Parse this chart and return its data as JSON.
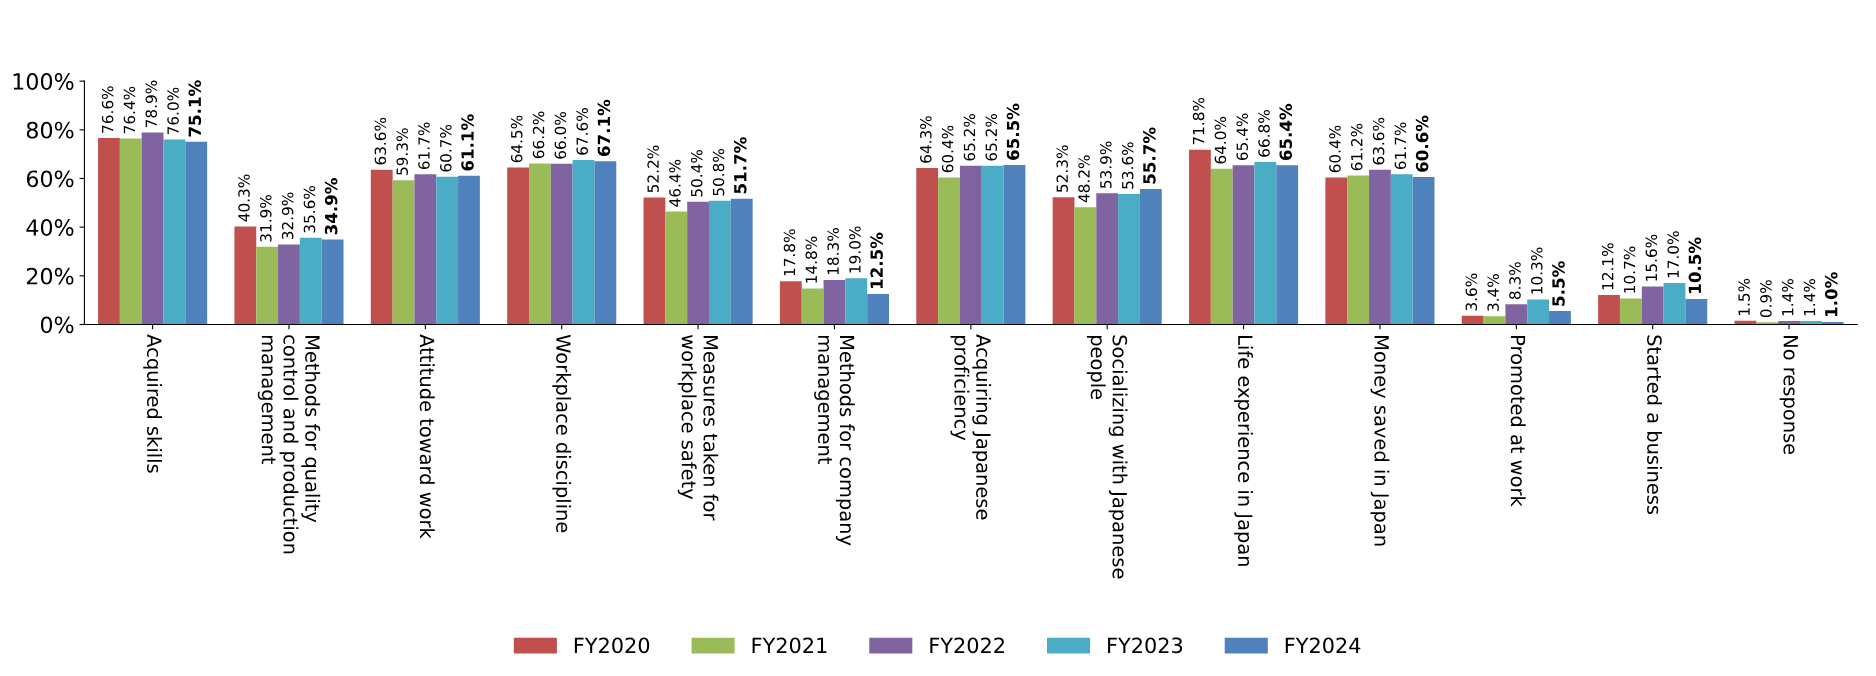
{
  "chart_data": {
    "type": "bar",
    "categories": [
      "Acquired skills",
      "Methods for quality\ncontrol and production\nmanagement",
      "Attitude toward work",
      "Workplace discipline",
      "Measures taken for\nworkplace safety",
      "Methods for company\nmanagement",
      "Acquiring Japanese\nproficiency",
      "Socializing with Japanese\npeople",
      "Life experience in Japan",
      "Money saved in Japan",
      "Promoted at work",
      "Started a business",
      "No response"
    ],
    "series": [
      {
        "name": "FY2020",
        "color": "#c0504d",
        "values": [
          76.6,
          40.3,
          63.6,
          64.5,
          52.2,
          17.8,
          64.3,
          52.3,
          71.8,
          60.4,
          3.6,
          12.1,
          1.5
        ],
        "value_labels": [
          "76.6%",
          "40.3%",
          "63.6%",
          "64.5%",
          "52.2%",
          "17.8%",
          "64.3%",
          "52.3%",
          "71.8%",
          "60.4%",
          "3.6%",
          "12.1%",
          "1.5%"
        ]
      },
      {
        "name": "FY2021",
        "color": "#9bbb59",
        "values": [
          76.4,
          31.9,
          59.3,
          66.2,
          46.4,
          14.8,
          60.4,
          48.2,
          64.0,
          61.2,
          3.4,
          10.7,
          0.9
        ],
        "value_labels": [
          "76.4%",
          "31.9%",
          "59.3%",
          "66.2%",
          "46.4%",
          "14.8%",
          "60.4%",
          "48.2%",
          "64.0%",
          "61.2%",
          "3.4%",
          "10.7%",
          "0.9%"
        ]
      },
      {
        "name": "FY2022",
        "color": "#8064a2",
        "values": [
          78.9,
          32.9,
          61.7,
          66.0,
          50.4,
          18.3,
          65.2,
          53.9,
          65.4,
          63.6,
          8.3,
          15.6,
          1.4
        ],
        "value_labels": [
          "78.9%",
          "32.9%",
          "61.7%",
          "66.0%",
          "50.4%",
          "18.3%",
          "65.2%",
          "53.9%",
          "65.4%",
          "63.6%",
          "8.3%",
          "15.6%",
          "1.4%"
        ]
      },
      {
        "name": "FY2023",
        "color": "#4bacc6",
        "values": [
          76.0,
          35.6,
          60.7,
          67.6,
          50.8,
          19.0,
          65.2,
          53.6,
          66.8,
          61.7,
          10.3,
          17.0,
          1.4
        ],
        "value_labels": [
          "76.0%",
          "35.6%",
          "60.7%",
          "67.6%",
          "50.8%",
          "19.0%",
          "65.2%",
          "53.6%",
          "66.8%",
          "61.7%",
          "10.3%",
          "17.0%",
          "1.4%"
        ]
      },
      {
        "name": "FY2024",
        "color": "#4f81bd",
        "values": [
          75.1,
          34.9,
          61.1,
          67.1,
          51.7,
          12.5,
          65.5,
          55.7,
          65.4,
          60.6,
          5.5,
          10.5,
          1.0
        ],
        "value_labels": [
          "75.1%",
          "34.9%",
          "61.1%",
          "67.1%",
          "51.7%",
          "12.5%",
          "65.5%",
          "55.7%",
          "65.4%",
          "60.6%",
          "5.5%",
          "10.5%",
          "1.0%"
        ]
      }
    ],
    "ylim": [
      0,
      100
    ],
    "yticks": [
      {
        "value": 0,
        "label": "0%"
      },
      {
        "value": 20,
        "label": "20%"
      },
      {
        "value": 40,
        "label": "40%"
      },
      {
        "value": 60,
        "label": "60%"
      },
      {
        "value": 80,
        "label": "80%"
      },
      {
        "value": 100,
        "label": "100%"
      }
    ],
    "grid": false,
    "legend": "bottom"
  }
}
